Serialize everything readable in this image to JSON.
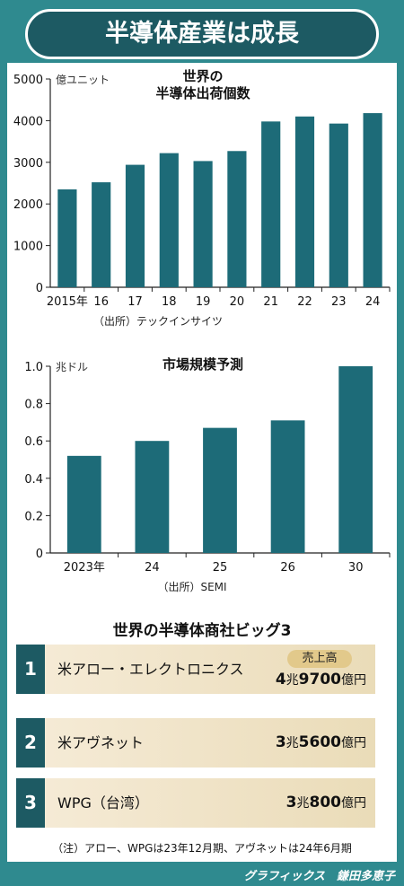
{
  "title": "半導体産業は成長",
  "chart_data": [
    {
      "type": "bar",
      "title": "世界の\n半導体出荷個数",
      "ylabel": "億ユニット",
      "categories": [
        "2015年",
        "16",
        "17",
        "18",
        "19",
        "20",
        "21",
        "22",
        "23",
        "24"
      ],
      "values": [
        2350,
        2520,
        2940,
        3220,
        3030,
        3270,
        3980,
        4100,
        3930,
        4180
      ],
      "ylim": [
        0,
        5000
      ],
      "yticks": [
        "0",
        "1000",
        "2000",
        "3000",
        "4000",
        "5000"
      ],
      "source": "（出所）テックインサイツ",
      "bar_color": "#1d6b78"
    },
    {
      "type": "bar",
      "title": "市場規模予測",
      "ylabel": "兆ドル",
      "categories": [
        "2023年",
        "24",
        "25",
        "26",
        "30"
      ],
      "values": [
        0.52,
        0.6,
        0.67,
        0.71,
        1.0
      ],
      "ylim": [
        0,
        1.0
      ],
      "yticks": [
        "0",
        "0.2",
        "0.4",
        "0.6",
        "0.8",
        "1.0"
      ],
      "source": "（出所）SEMI",
      "bar_color": "#1d6b78"
    }
  ],
  "big3": {
    "title": "世界の半導体商社ビッグ3",
    "badge": "売上高",
    "rows": [
      {
        "rank": "1",
        "name": "米アロー・エレクトロニクス",
        "cho": "4",
        "cho_unit": "兆",
        "oku": "9700",
        "oku_unit": "億円"
      },
      {
        "rank": "2",
        "name": "米アヴネット",
        "cho": "3",
        "cho_unit": "兆",
        "oku": "5600",
        "oku_unit": "億円"
      },
      {
        "rank": "3",
        "name": "WPG（台湾）",
        "cho": "3",
        "cho_unit": "兆",
        "oku": "800",
        "oku_unit": "億円"
      }
    ]
  },
  "note": "（注）アロー、WPGは23年12月期、アヴネットは24年6月期",
  "credit": "グラフィックス　鎌田多恵子"
}
